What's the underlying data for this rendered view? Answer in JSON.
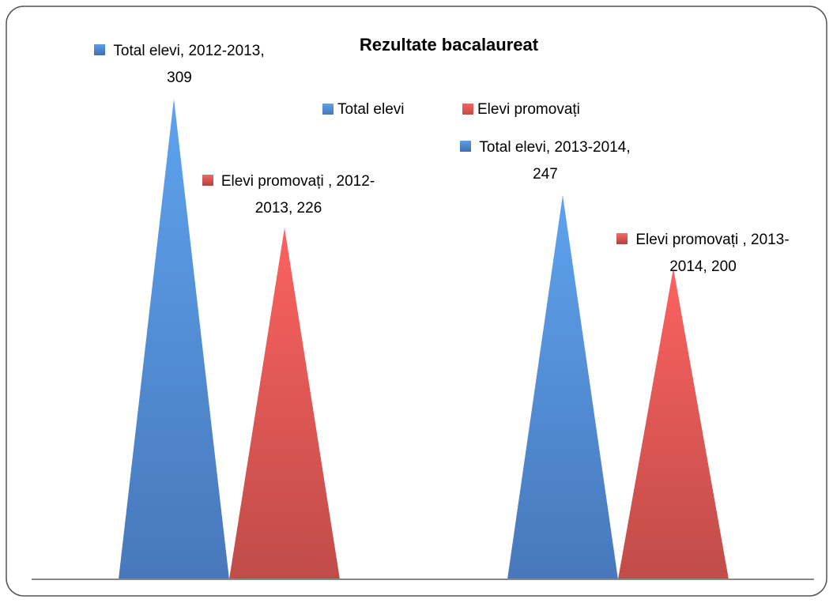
{
  "chart_data": {
    "type": "bar",
    "bar_shape": "triangle",
    "title": "Rezultate bacalaureat",
    "categories": [
      null,
      null
    ],
    "series": [
      {
        "name": "Total elevi",
        "color": "#4f81bd",
        "values": [
          309,
          247
        ],
        "value_labels": [
          "Total elevi, 2012-2013, 309",
          "Total elevi, 2013-2014, 247"
        ]
      },
      {
        "name": "Elevi promovați",
        "color": "#c0504d",
        "values": [
          226,
          200
        ],
        "value_labels": [
          "Elevi promovați , 2012-2013, 226",
          "Elevi promovați , 2013-2014, 200"
        ]
      }
    ],
    "legend": "top",
    "grid": false
  }
}
